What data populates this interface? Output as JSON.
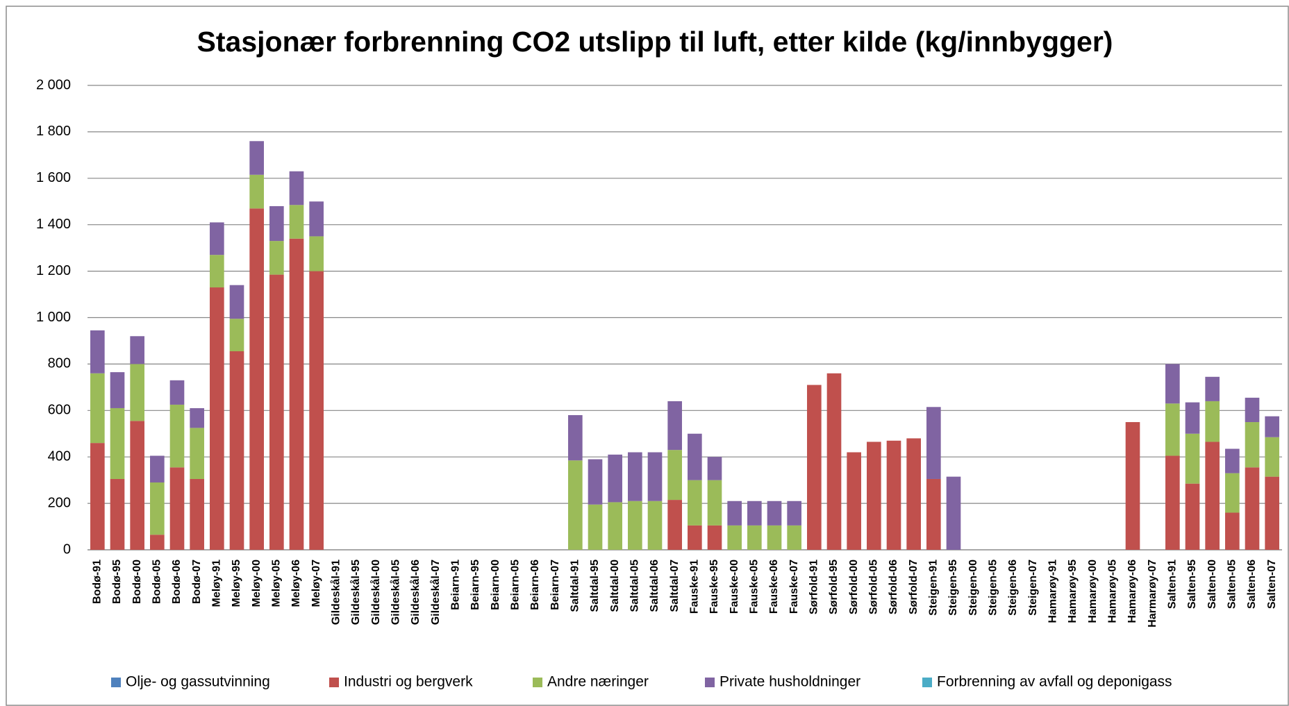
{
  "chart_data": {
    "type": "stacked_bar",
    "title": "Stasjonær forbrenning CO2 utslipp til luft, etter kilde (kg/innbygger)",
    "categories": [
      "Bodø-91",
      "Bodø-95",
      "Bodø-00",
      "Bodø-05",
      "Bodø-06",
      "Bodø-07",
      "Meløy-91",
      "Meløy-95",
      "Meløy-00",
      "Meløy-05",
      "Meløy-06",
      "Meløy-07",
      "Gildeskål-91",
      "Gildeskål-95",
      "Gildeskål-00",
      "Gildeskål-05",
      "Gildeskål-06",
      "Gildeskål-07",
      "Beiarn-91",
      "Beiarn-95",
      "Beiarn-00",
      "Beiarn-05",
      "Beiarn-06",
      "Beiarn-07",
      "Saltdal-91",
      "Saltdal-95",
      "Saltdal-00",
      "Saltdal-05",
      "Saltdal-06",
      "Saltdal-07",
      "Fauske-91",
      "Fauske-95",
      "Fauske-00",
      "Fauske-05",
      "Fauske-06",
      "Fauske-07",
      "Sørfold-91",
      "Sørfold-95",
      "Sørfold-00",
      "Sørfold-05",
      "Sørfold-06",
      "Sørfold-07",
      "Steigen-91",
      "Steigen-95",
      "Steigen-00",
      "Steigen-05",
      "Steigen-06",
      "Steigen-07",
      "Hamarøy-91",
      "Hamarøy-95",
      "Hamarøy-00",
      "Hamarøy-05",
      "Hamarøy-06",
      "Harmarøy-07",
      "Salten-91",
      "Salten-95",
      "Salten-00",
      "Salten-05",
      "Salten-06",
      "Salten-07"
    ],
    "series": [
      {
        "name": "Olje- og gassutvinning",
        "color": "#4f81bd",
        "values": [
          0,
          0,
          0,
          0,
          0,
          0,
          0,
          0,
          0,
          0,
          0,
          0,
          null,
          null,
          null,
          null,
          null,
          null,
          null,
          null,
          null,
          null,
          null,
          null,
          0,
          0,
          0,
          0,
          0,
          0,
          0,
          0,
          0,
          0,
          0,
          0,
          0,
          0,
          0,
          0,
          0,
          0,
          0,
          0,
          null,
          null,
          null,
          null,
          null,
          null,
          null,
          null,
          0,
          null,
          0,
          0,
          0,
          0,
          0,
          0
        ]
      },
      {
        "name": "Industri og bergverk",
        "color": "#c0504d",
        "values": [
          460,
          305,
          555,
          65,
          355,
          305,
          1130,
          855,
          1470,
          1185,
          1340,
          1200,
          null,
          null,
          null,
          null,
          null,
          null,
          null,
          null,
          null,
          null,
          null,
          null,
          0,
          0,
          0,
          0,
          0,
          215,
          105,
          105,
          0,
          0,
          0,
          0,
          710,
          760,
          420,
          465,
          470,
          480,
          305,
          0,
          null,
          null,
          null,
          null,
          null,
          null,
          null,
          null,
          550,
          null,
          405,
          285,
          465,
          160,
          355,
          315
        ]
      },
      {
        "name": "Andre næringer",
        "color": "#9bbb59",
        "values": [
          300,
          305,
          245,
          225,
          270,
          220,
          140,
          140,
          145,
          145,
          145,
          150,
          null,
          null,
          null,
          null,
          null,
          null,
          null,
          null,
          null,
          null,
          null,
          null,
          385,
          195,
          205,
          210,
          210,
          215,
          195,
          195,
          105,
          105,
          105,
          105,
          0,
          0,
          0,
          0,
          0,
          0,
          0,
          0,
          null,
          null,
          null,
          null,
          null,
          null,
          null,
          null,
          0,
          null,
          225,
          215,
          175,
          170,
          195,
          170
        ]
      },
      {
        "name": "Private husholdninger",
        "color": "#8064a2",
        "values": [
          185,
          155,
          120,
          115,
          105,
          85,
          140,
          145,
          145,
          150,
          145,
          150,
          null,
          null,
          null,
          null,
          null,
          null,
          null,
          null,
          null,
          null,
          null,
          null,
          195,
          195,
          205,
          210,
          210,
          210,
          200,
          100,
          105,
          105,
          105,
          105,
          0,
          0,
          0,
          0,
          0,
          0,
          310,
          315,
          null,
          null,
          null,
          null,
          null,
          null,
          null,
          null,
          0,
          null,
          170,
          135,
          105,
          105,
          105,
          90
        ]
      },
      {
        "name": "Forbrenning av avfall og deponigass",
        "color": "#4bacc6",
        "values": [
          0,
          0,
          0,
          0,
          0,
          0,
          0,
          0,
          0,
          0,
          0,
          0,
          null,
          null,
          null,
          null,
          null,
          null,
          null,
          null,
          null,
          null,
          null,
          null,
          0,
          0,
          0,
          0,
          0,
          0,
          0,
          0,
          0,
          0,
          0,
          0,
          0,
          0,
          0,
          0,
          0,
          0,
          0,
          0,
          null,
          null,
          null,
          null,
          null,
          null,
          null,
          null,
          0,
          null,
          0,
          0,
          0,
          0,
          0,
          0
        ]
      }
    ],
    "ylim": [
      0,
      2000
    ],
    "yticks": [
      0,
      200,
      400,
      600,
      800,
      {
        "value": 1000,
        "label": "1 000"
      },
      {
        "value": 1200,
        "label": "1 200"
      },
      {
        "value": 1400,
        "label": "1 400"
      },
      {
        "value": 1600,
        "label": "1 600"
      },
      {
        "value": 1800,
        "label": "1 800"
      },
      {
        "value": 2000,
        "label": "2 000"
      }
    ],
    "grid": true,
    "legend": "bottom"
  }
}
